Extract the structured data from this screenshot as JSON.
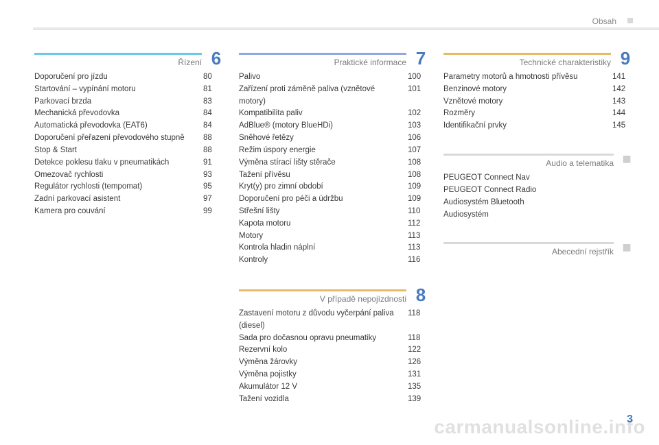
{
  "page_label": "Obsah",
  "page_number": "3",
  "page_number_color": "#4a7bbf",
  "watermark": "carmanualsonline.info",
  "columns": [
    {
      "sections": [
        {
          "title": "Řízení",
          "number": "6",
          "rule_color": "#6cc8e6",
          "num_color": "#4a7bbf",
          "items": [
            {
              "label": "Doporučení pro jízdu",
              "page": "80"
            },
            {
              "label": "Startování – vypínání motoru",
              "page": "81"
            },
            {
              "label": "Parkovací brzda",
              "page": "83"
            },
            {
              "label": "Mechanická převodovka",
              "page": "84"
            },
            {
              "label": "Automatická převodovka (EAT6)",
              "page": "84"
            },
            {
              "label": "Doporučení přeřazení převodového stupně",
              "page": "88"
            },
            {
              "label": "Stop & Start",
              "page": "88"
            },
            {
              "label": "Detekce poklesu tlaku v pneumatikách",
              "page": "91"
            },
            {
              "label": "Omezovač rychlosti",
              "page": "93"
            },
            {
              "label": "Regulátor rychlosti (tempomat)",
              "page": "95"
            },
            {
              "label": "Zadní parkovací asistent",
              "page": "97"
            },
            {
              "label": "Kamera pro couvání",
              "page": "99"
            }
          ]
        }
      ]
    },
    {
      "sections": [
        {
          "title": "Praktické informace",
          "number": "7",
          "rule_color": "#8fa9e0",
          "num_color": "#4a7bbf",
          "items": [
            {
              "label": "Palivo",
              "page": "100"
            },
            {
              "label": "Zařízení proti záměně paliva (vznětové motory)",
              "page": "101"
            },
            {
              "label": "Kompatibilita paliv",
              "page": "102"
            },
            {
              "label": "AdBlue® (motory BlueHDi)",
              "page": "103"
            },
            {
              "label": "Sněhové řetězy",
              "page": "106"
            },
            {
              "label": "Režim úspory energie",
              "page": "107"
            },
            {
              "label": "Výměna stírací lišty stěrače",
              "page": "108"
            },
            {
              "label": "Tažení přívěsu",
              "page": "108"
            },
            {
              "label": "Kryt(y) pro zimní období",
              "page": "109"
            },
            {
              "label": "Doporučení pro péči a údržbu",
              "page": "109"
            },
            {
              "label": "Střešní lišty",
              "page": "110"
            },
            {
              "label": "Kapota motoru",
              "page": "112"
            },
            {
              "label": "Motory",
              "page": "113"
            },
            {
              "label": "Kontrola hladin náplní",
              "page": "113"
            },
            {
              "label": "Kontroly",
              "page": "116"
            }
          ]
        },
        {
          "title": "V případě nepojízdnosti",
          "number": "8",
          "rule_color": "#e6ba66",
          "num_color": "#4a7bbf",
          "items": [
            {
              "label": "Zastavení motoru z důvodu vyčerpání paliva (diesel)",
              "page": "118"
            },
            {
              "label": "Sada pro dočasnou opravu pneumatiky",
              "page": "118"
            },
            {
              "label": "Rezervní kolo",
              "page": "122"
            },
            {
              "label": "Výměna žárovky",
              "page": "126"
            },
            {
              "label": "Výměna pojistky",
              "page": "131"
            },
            {
              "label": "Akumulátor 12 V",
              "page": "135"
            },
            {
              "label": "Tažení vozidla",
              "page": "139"
            }
          ]
        }
      ]
    },
    {
      "sections": [
        {
          "title": "Technické charakteristiky",
          "number": "9",
          "rule_color": "#e6ba66",
          "num_color": "#4a7bbf",
          "items": [
            {
              "label": "Parametry motorů a hmotnosti přívěsu",
              "page": "141"
            },
            {
              "label": "Benzinové motory",
              "page": "142"
            },
            {
              "label": "Vznětové motory",
              "page": "143"
            },
            {
              "label": "Rozměry",
              "page": "144"
            },
            {
              "label": "Identifikační prvky",
              "page": "145"
            }
          ]
        },
        {
          "title": "Audio a telematika",
          "number": "",
          "bullet": true,
          "rule_color": "#d9d9d9",
          "num_color": "#cfcfcf",
          "items": [
            {
              "label": "PEUGEOT Connect Nav",
              "page": ""
            },
            {
              "label": "PEUGEOT Connect Radio",
              "page": ""
            },
            {
              "label": "Audiosystém Bluetooth",
              "page": ""
            },
            {
              "label": "Audiosystém",
              "page": ""
            }
          ]
        },
        {
          "title": "Abecední rejstřík",
          "number": "",
          "bullet": true,
          "rule_color": "#d9d9d9",
          "num_color": "#cfcfcf",
          "items": []
        }
      ]
    }
  ]
}
